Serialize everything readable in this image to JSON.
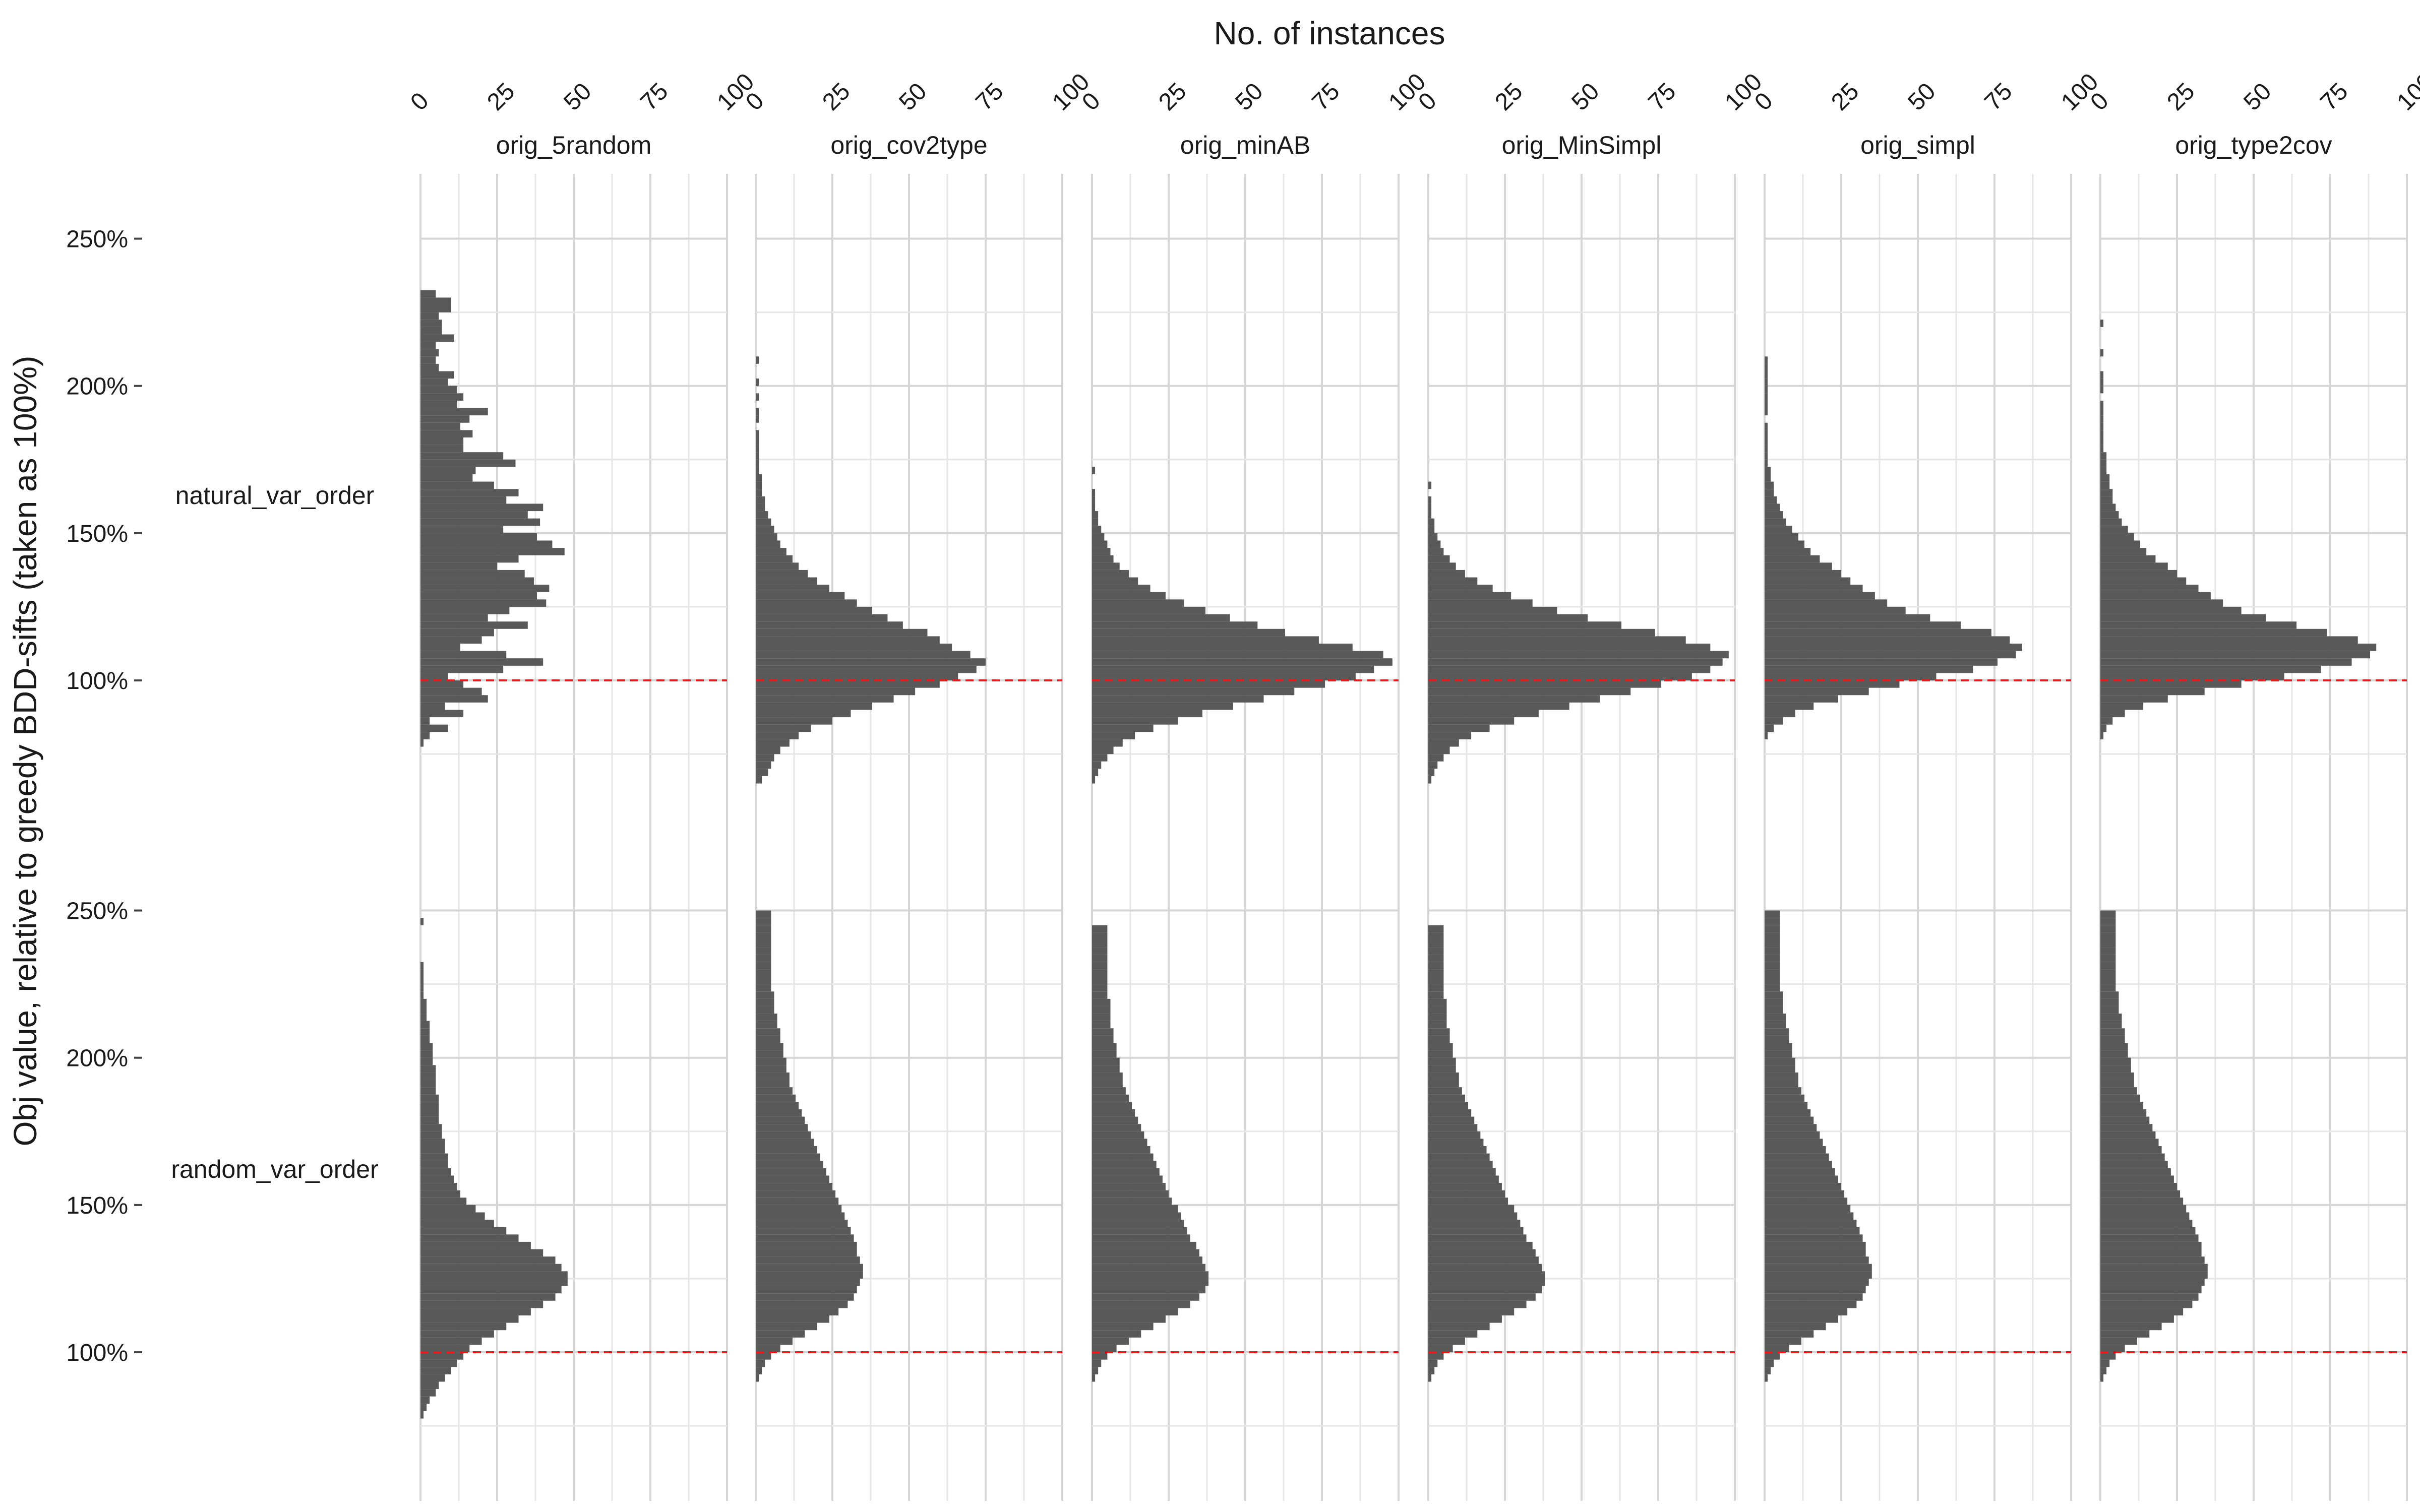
{
  "chart_data": {
    "type": "bar",
    "orientation": "horizontal",
    "facet": "grid",
    "title": "",
    "xlabel": "No. of instances",
    "ylabel": "Obj value, relative to greedy BDD-sifts (taken as 100%)",
    "xlim": [
      0,
      100
    ],
    "x_ticks": [
      0,
      25,
      50,
      75,
      100
    ],
    "x_tick_labels": [
      "0",
      "25",
      "50",
      "75",
      "100"
    ],
    "ylim": [
      55,
      272
    ],
    "y_ticks": [
      100,
      150,
      200,
      250
    ],
    "y_tick_labels": [
      "100%",
      "150%",
      "200%",
      "250%"
    ],
    "bin_width": 2.5,
    "reference_line": {
      "y": 100,
      "color": "#e41a1c",
      "style": "dashed"
    },
    "bar_color": "#595959",
    "grid": true,
    "legend": "none",
    "columns": [
      "orig_5random",
      "orig_cov2type",
      "orig_minAB",
      "orig_MinSimpl",
      "orig_simpl",
      "orig_type2cov"
    ],
    "rows": [
      "natural_var_order",
      "random_var_order"
    ],
    "panels": [
      {
        "row": "natural_var_order",
        "col": "orig_5random",
        "y_start": 77.5,
        "counts": [
          1,
          3,
          9,
          3,
          14,
          8,
          22,
          20,
          14,
          9,
          27,
          40,
          28,
          13,
          20,
          24,
          35,
          22,
          29,
          41,
          38,
          42,
          37,
          34,
          25,
          32,
          47,
          43,
          38,
          27,
          39,
          35,
          40,
          28,
          32,
          24,
          17,
          18,
          31,
          27,
          14,
          14,
          17,
          13,
          16,
          22,
          12,
          14,
          12,
          9,
          11,
          6,
          5,
          6,
          5,
          11,
          7,
          7,
          6,
          10,
          10,
          5
        ]
      },
      {
        "row": "natural_var_order",
        "col": "orig_cov2type",
        "y_start": 65,
        "counts": [
          2,
          4,
          5,
          6,
          8,
          11,
          14,
          18,
          25,
          31,
          38,
          45,
          52,
          60,
          66,
          72,
          75,
          70,
          64,
          60,
          56,
          48,
          43,
          38,
          33,
          29,
          24,
          20,
          17,
          14,
          12,
          10,
          8,
          7,
          6,
          5,
          4,
          3,
          3,
          2,
          2,
          2,
          1,
          1,
          1,
          1,
          1,
          1,
          0,
          1,
          1,
          0,
          1,
          0,
          1,
          0,
          0,
          1
        ]
      },
      {
        "row": "natural_var_order",
        "col": "orig_minAB",
        "y_start": 65,
        "counts": [
          1,
          2,
          3,
          5,
          7,
          10,
          14,
          20,
          28,
          36,
          46,
          56,
          66,
          76,
          86,
          92,
          98,
          95,
          85,
          74,
          63,
          54,
          45,
          37,
          30,
          24,
          19,
          15,
          12,
          9,
          7,
          6,
          5,
          4,
          3,
          2,
          2,
          1,
          1,
          1,
          0,
          0,
          1
        ]
      },
      {
        "row": "natural_var_order",
        "col": "orig_MinSimpl",
        "y_start": 65,
        "counts": [
          1,
          2,
          3,
          5,
          7,
          10,
          14,
          20,
          28,
          36,
          46,
          56,
          66,
          76,
          86,
          92,
          96,
          98,
          92,
          84,
          74,
          63,
          52,
          42,
          34,
          27,
          21,
          16,
          12,
          9,
          7,
          5,
          4,
          3,
          2,
          2,
          1,
          1,
          1,
          0,
          1
        ]
      },
      {
        "row": "natural_var_order",
        "col": "orig_simpl",
        "y_start": 80,
        "counts": [
          1,
          3,
          6,
          10,
          16,
          24,
          34,
          44,
          56,
          68,
          76,
          82,
          84,
          80,
          74,
          64,
          54,
          46,
          40,
          36,
          32,
          28,
          25,
          22,
          18,
          15,
          13,
          11,
          9,
          7,
          6,
          5,
          4,
          3,
          3,
          2,
          2,
          1,
          1,
          1,
          1,
          1,
          1,
          0,
          1,
          1,
          1,
          1,
          1,
          1,
          1,
          1
        ]
      },
      {
        "row": "natural_var_order",
        "col": "orig_type2cov",
        "y_start": 80,
        "counts": [
          1,
          2,
          4,
          8,
          14,
          22,
          34,
          46,
          60,
          72,
          82,
          88,
          90,
          84,
          74,
          64,
          54,
          46,
          40,
          36,
          32,
          28,
          25,
          22,
          18,
          15,
          13,
          11,
          9,
          7,
          6,
          5,
          4,
          4,
          3,
          3,
          2,
          2,
          2,
          1,
          1,
          1,
          1,
          1,
          1,
          1,
          0,
          1,
          1,
          1,
          0,
          0,
          1,
          0,
          0,
          0,
          1
        ]
      },
      {
        "row": "random_var_order",
        "col": "orig_5random",
        "y_start": 77.5,
        "counts": [
          1,
          2,
          3,
          5,
          6,
          8,
          10,
          12,
          14,
          16,
          20,
          24,
          28,
          32,
          36,
          40,
          44,
          46,
          48,
          48,
          46,
          44,
          40,
          36,
          32,
          28,
          24,
          21,
          18,
          15,
          13,
          12,
          11,
          10,
          9,
          9,
          8,
          8,
          7,
          7,
          6,
          6,
          6,
          6,
          5,
          5,
          5,
          5,
          4,
          4,
          4,
          3,
          3,
          3,
          2,
          2,
          2,
          1,
          1,
          1,
          1,
          1,
          0,
          0,
          0,
          0,
          0,
          1
        ]
      },
      {
        "row": "random_var_order",
        "col": "orig_cov2type",
        "y_start": 90,
        "counts": [
          1,
          2,
          3,
          5,
          8,
          12,
          16,
          20,
          24,
          27,
          30,
          32,
          33,
          34,
          35,
          35,
          34,
          33,
          33,
          32,
          31,
          30,
          29,
          28,
          27,
          26,
          25,
          24,
          23,
          22,
          21,
          20,
          19,
          18,
          17,
          16,
          15,
          14,
          13,
          12,
          11,
          11,
          10,
          10,
          9,
          9,
          8,
          8,
          7,
          7,
          6,
          6,
          6,
          5,
          5,
          5,
          5,
          5,
          5,
          5,
          5,
          5,
          5,
          5
        ]
      },
      {
        "row": "random_var_order",
        "col": "orig_minAB",
        "y_start": 90,
        "counts": [
          1,
          2,
          3,
          5,
          8,
          12,
          16,
          20,
          24,
          28,
          32,
          35,
          37,
          38,
          38,
          37,
          36,
          35,
          34,
          32,
          31,
          30,
          29,
          28,
          26,
          25,
          24,
          23,
          22,
          21,
          20,
          19,
          18,
          17,
          16,
          15,
          14,
          13,
          12,
          11,
          10,
          10,
          9,
          9,
          8,
          8,
          7,
          7,
          6,
          6,
          6,
          6,
          5,
          5,
          5,
          5,
          5,
          5,
          5,
          5,
          5,
          5
        ]
      },
      {
        "row": "random_var_order",
        "col": "orig_MinSimpl",
        "y_start": 90,
        "counts": [
          1,
          2,
          3,
          5,
          8,
          12,
          16,
          20,
          24,
          28,
          32,
          35,
          37,
          38,
          38,
          37,
          36,
          35,
          34,
          32,
          31,
          30,
          29,
          28,
          26,
          25,
          24,
          23,
          22,
          21,
          20,
          19,
          18,
          17,
          16,
          15,
          14,
          13,
          12,
          11,
          10,
          10,
          9,
          9,
          8,
          8,
          7,
          7,
          6,
          6,
          6,
          6,
          5,
          5,
          5,
          5,
          5,
          5,
          5,
          5,
          5,
          5
        ]
      },
      {
        "row": "random_var_order",
        "col": "orig_simpl",
        "y_start": 90,
        "counts": [
          1,
          2,
          3,
          5,
          8,
          12,
          16,
          20,
          24,
          27,
          30,
          32,
          33,
          34,
          35,
          35,
          34,
          33,
          33,
          32,
          31,
          30,
          29,
          28,
          27,
          26,
          25,
          24,
          23,
          22,
          21,
          20,
          19,
          18,
          17,
          16,
          15,
          14,
          13,
          12,
          11,
          11,
          10,
          10,
          9,
          9,
          8,
          8,
          7,
          7,
          6,
          6,
          6,
          5,
          5,
          5,
          5,
          5,
          5,
          5,
          5,
          5,
          5,
          5
        ]
      },
      {
        "row": "random_var_order",
        "col": "orig_type2cov",
        "y_start": 90,
        "counts": [
          1,
          2,
          3,
          5,
          8,
          12,
          16,
          20,
          24,
          27,
          30,
          32,
          33,
          34,
          35,
          35,
          34,
          33,
          33,
          32,
          31,
          30,
          29,
          28,
          27,
          26,
          25,
          24,
          23,
          22,
          21,
          20,
          19,
          18,
          17,
          16,
          15,
          14,
          13,
          12,
          11,
          11,
          10,
          10,
          9,
          9,
          8,
          8,
          7,
          7,
          6,
          6,
          6,
          5,
          5,
          5,
          5,
          5,
          5,
          5,
          5,
          5,
          5,
          5
        ]
      }
    ]
  }
}
